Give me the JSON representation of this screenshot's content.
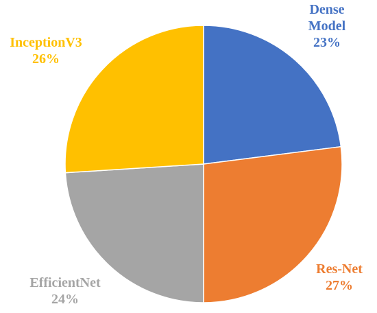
{
  "chart_data": {
    "type": "pie",
    "title": "",
    "slices": [
      {
        "name": "Dense Model",
        "value": 23,
        "label_lines": [
          "Dense",
          "Model",
          "23%"
        ],
        "color": "#4472C4"
      },
      {
        "name": "Res-Net",
        "value": 27,
        "label_lines": [
          "Res-Net",
          "27%"
        ],
        "color": "#ED7D31"
      },
      {
        "name": "EfficientNet",
        "value": 24,
        "label_lines": [
          "EfficientNet",
          "24%"
        ],
        "color": "#A5A5A5"
      },
      {
        "name": "InceptionV3",
        "value": 26,
        "label_lines": [
          "InceptionV3",
          "26%"
        ],
        "color": "#FFC000"
      }
    ],
    "start_angle": "12 o'clock",
    "direction": "clockwise",
    "legend": "none",
    "label_placement": "outside, near each slice"
  }
}
